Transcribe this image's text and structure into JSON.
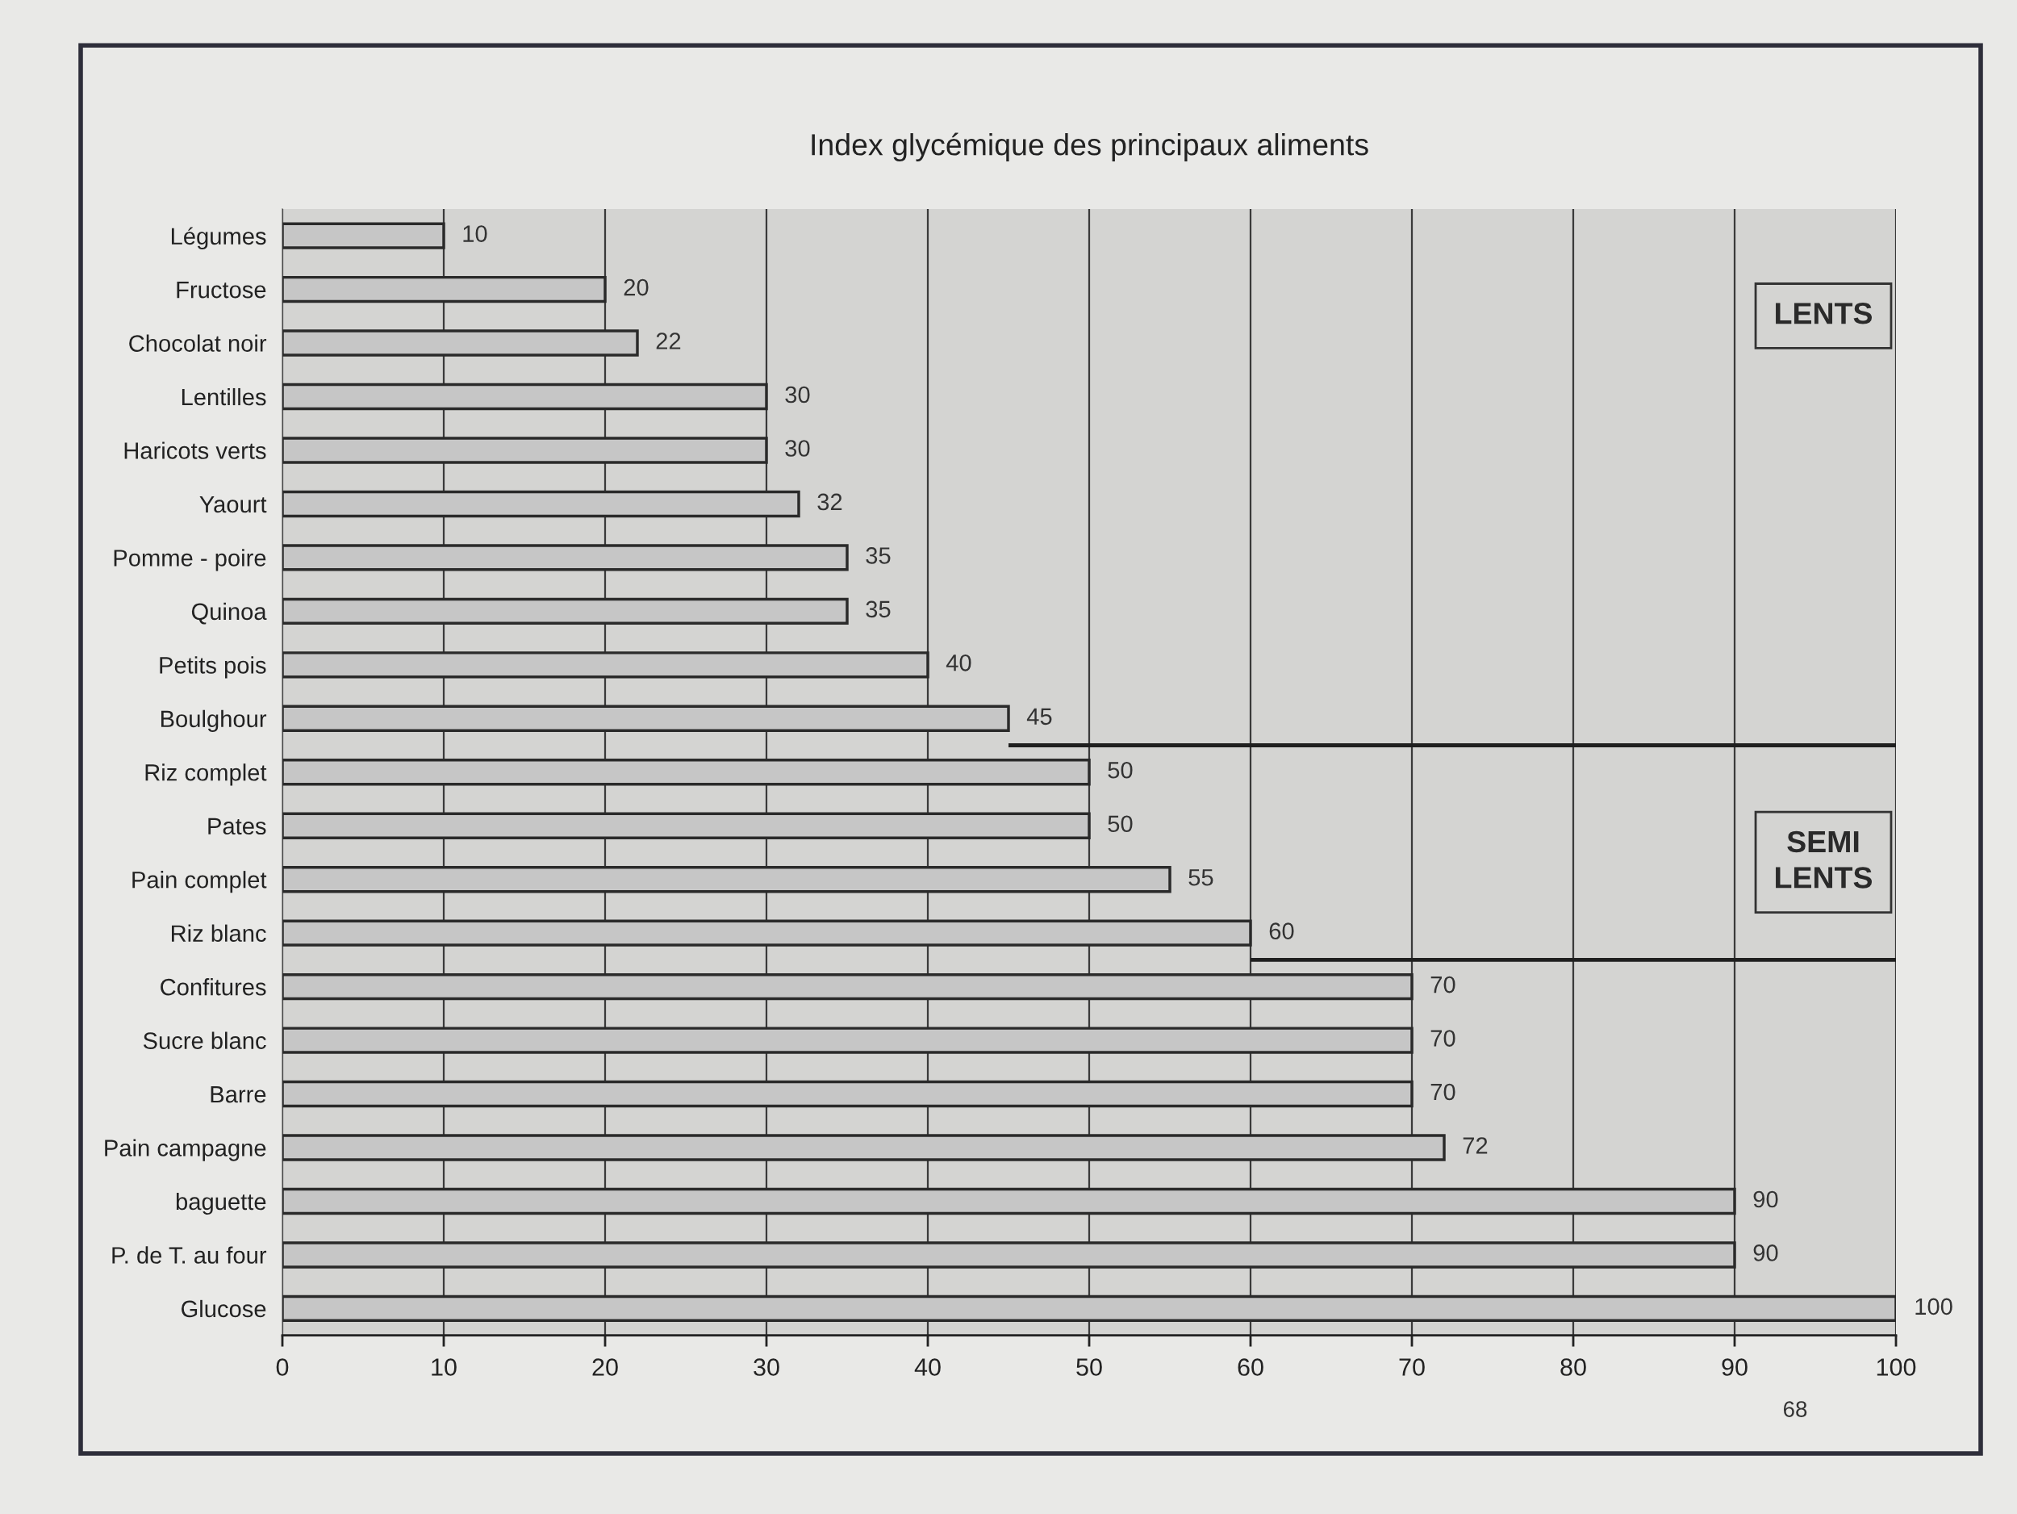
{
  "chart_data": {
    "type": "bar",
    "orientation": "horizontal",
    "title": "Index glycémique des principaux aliments",
    "categories": [
      "Légumes",
      "Fructose",
      "Chocolat noir",
      "Lentilles",
      "Haricots verts",
      "Yaourt",
      "Pomme - poire",
      "Quinoa",
      "Petits pois",
      "Boulghour",
      "Riz complet",
      "Pates",
      "Pain complet",
      "Riz blanc",
      "Confitures",
      "Sucre blanc",
      "Barre",
      "Pain campagne",
      "baguette",
      "P. de T. au four",
      "Glucose"
    ],
    "values": [
      10,
      20,
      22,
      30,
      30,
      32,
      35,
      35,
      40,
      45,
      50,
      50,
      55,
      60,
      70,
      70,
      70,
      72,
      90,
      90,
      100
    ],
    "color": "#c6c6c6",
    "xlim": [
      0,
      100
    ],
    "xticks": [
      0,
      10,
      20,
      30,
      40,
      50,
      60,
      70,
      80,
      90,
      100
    ],
    "grid": "x",
    "data_labels": true,
    "ref_lines": [
      {
        "axis": "y",
        "value": "Boulghour"
      },
      {
        "axis": "y",
        "value": "Riz blanc"
      }
    ],
    "annotations": [
      "LENTS",
      "SEMI LENTS",
      "68"
    ]
  }
}
